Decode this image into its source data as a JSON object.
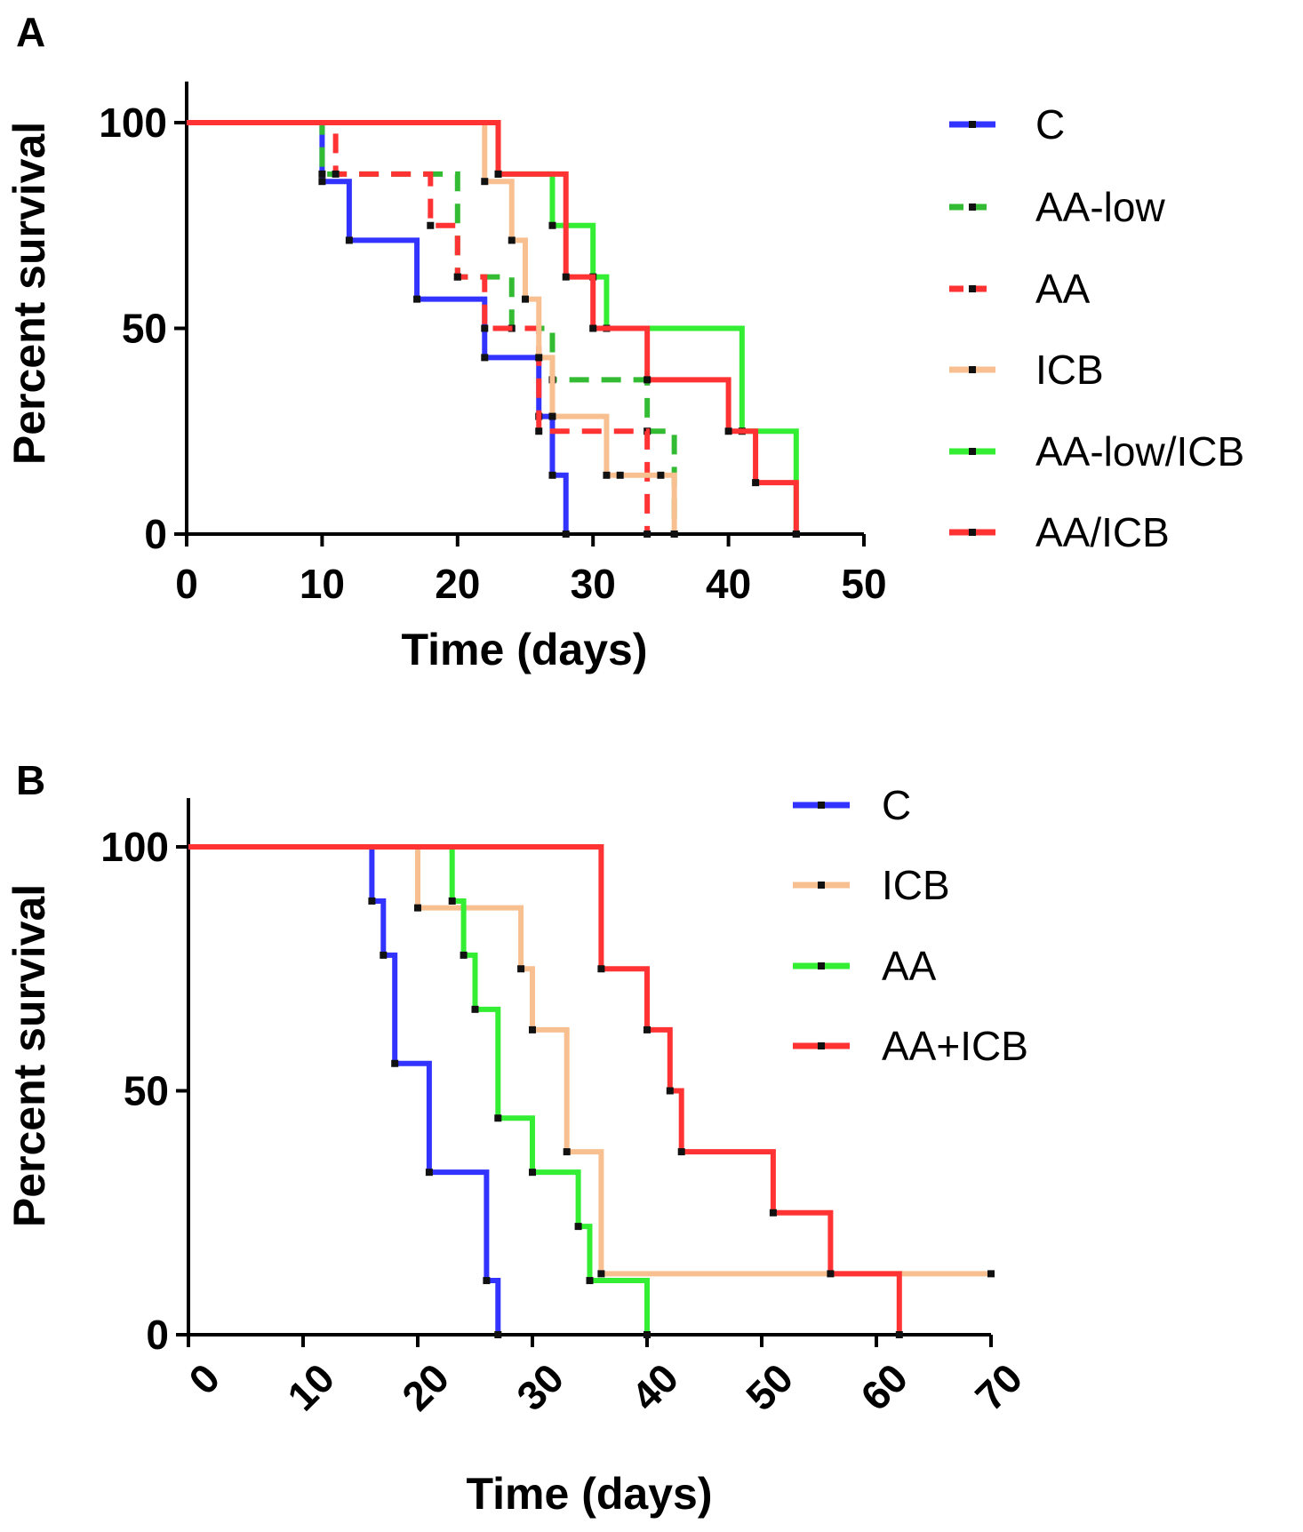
{
  "chart_data": [
    {
      "panel": "A",
      "type": "line",
      "subtype": "kaplan-meier",
      "title": "",
      "xlabel": "Time (days)",
      "ylabel": "Percent survival",
      "xlim": [
        0,
        50
      ],
      "ylim": [
        0,
        110
      ],
      "xticks": [
        0,
        10,
        20,
        30,
        40,
        50
      ],
      "yticks": [
        0,
        50,
        100
      ],
      "grid": false,
      "legend_position": "right",
      "series": [
        {
          "name": "C",
          "color": "#3333ff",
          "dash": "solid",
          "x": [
            0,
            10,
            12,
            17,
            22,
            26,
            27,
            28
          ],
          "y": [
            100,
            85.7,
            71.4,
            57.1,
            42.9,
            28.6,
            14.3,
            0
          ]
        },
        {
          "name": "AA-low",
          "color": "#33bb33",
          "dash": "dashed",
          "x": [
            0,
            10,
            20,
            24,
            27,
            34,
            36
          ],
          "y": [
            100,
            87.5,
            62.5,
            50,
            37.5,
            25,
            0
          ]
        },
        {
          "name": "AA",
          "color": "#ff3333",
          "dash": "dashed",
          "x": [
            0,
            11,
            18,
            20,
            22,
            26,
            34
          ],
          "y": [
            100,
            87.5,
            75,
            62.5,
            50,
            25,
            0
          ]
        },
        {
          "name": "ICB",
          "color": "#f8c090",
          "dash": "solid",
          "x": [
            0,
            22,
            24,
            25,
            26,
            27,
            31,
            32,
            35,
            36
          ],
          "y": [
            100,
            85.7,
            71.4,
            57.1,
            42.9,
            28.6,
            14.3,
            14.3,
            14.3,
            0
          ]
        },
        {
          "name": "AA-low/ICB",
          "color": "#33ee33",
          "dash": "solid",
          "x": [
            0,
            23,
            27,
            30,
            31,
            41,
            45
          ],
          "y": [
            100,
            87.5,
            75,
            62.5,
            50,
            25,
            0
          ]
        },
        {
          "name": "AA/ICB",
          "color": "#ff3333",
          "dash": "solid",
          "x": [
            0,
            23,
            28,
            30,
            34,
            40,
            42,
            45
          ],
          "y": [
            100,
            87.5,
            62.5,
            50,
            37.5,
            25,
            12.5,
            0
          ]
        }
      ]
    },
    {
      "panel": "B",
      "type": "line",
      "subtype": "kaplan-meier",
      "title": "",
      "xlabel": "Time (days)",
      "ylabel": "Percent survival",
      "xlim": [
        0,
        70
      ],
      "ylim": [
        0,
        110
      ],
      "xticks": [
        0,
        10,
        20,
        30,
        40,
        50,
        60,
        70
      ],
      "yticks": [
        0,
        50,
        100
      ],
      "grid": false,
      "legend_position": "top-right",
      "series": [
        {
          "name": "C",
          "color": "#3333ff",
          "dash": "solid",
          "x": [
            0,
            16,
            17,
            18,
            21,
            26,
            27
          ],
          "y": [
            100,
            88.9,
            77.8,
            55.6,
            33.3,
            11.1,
            0
          ]
        },
        {
          "name": "ICB",
          "color": "#f8c090",
          "dash": "solid",
          "x": [
            0,
            20,
            29,
            30,
            33,
            36,
            70
          ],
          "y": [
            100,
            87.5,
            75,
            62.5,
            37.5,
            12.5,
            12.5
          ]
        },
        {
          "name": "AA",
          "color": "#33ee33",
          "dash": "solid",
          "x": [
            0,
            23,
            24,
            25,
            27,
            30,
            34,
            35,
            40
          ],
          "y": [
            100,
            88.9,
            77.8,
            66.7,
            44.4,
            33.3,
            22.2,
            11.1,
            0
          ]
        },
        {
          "name": "AA+ICB",
          "color": "#ff3333",
          "dash": "solid",
          "x": [
            0,
            36,
            40,
            42,
            43,
            51,
            56,
            62
          ],
          "y": [
            100,
            75,
            62.5,
            50,
            37.5,
            25,
            12.5,
            0
          ]
        }
      ]
    }
  ]
}
